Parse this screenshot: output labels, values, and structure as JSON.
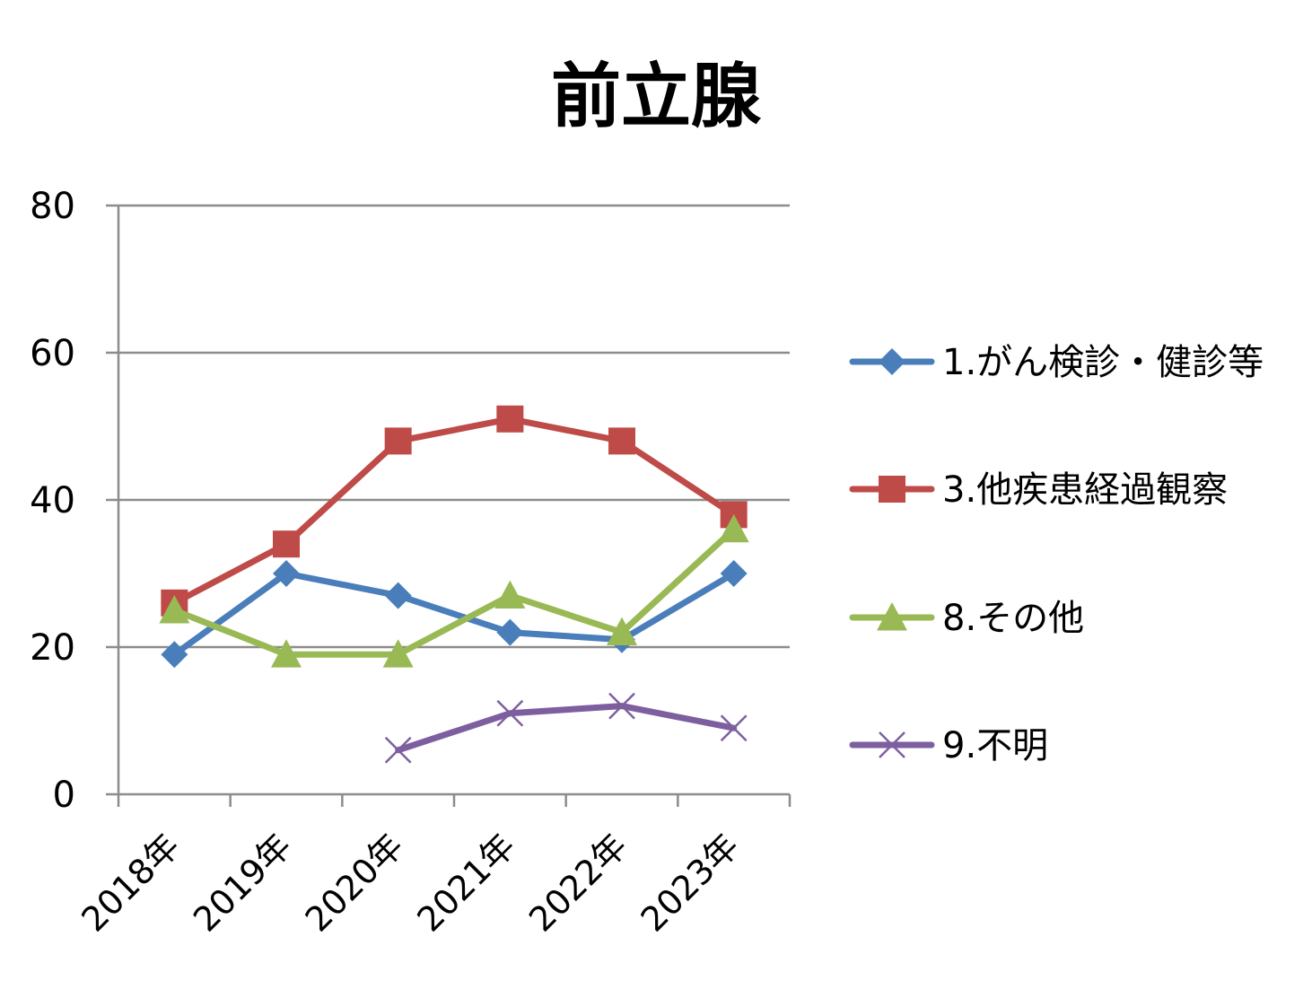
{
  "chart_data": {
    "type": "line",
    "title": "前立腺",
    "xlabel": "",
    "ylabel": "",
    "categories": [
      "2018年",
      "2019年",
      "2020年",
      "2021年",
      "2022年",
      "2023年"
    ],
    "ylim": [
      0,
      80
    ],
    "yticks": [
      "0",
      "20",
      "40",
      "60",
      "80"
    ],
    "grid": true,
    "legend_position": "right",
    "series": [
      {
        "name": "1.がん検診・健診等",
        "values": [
          19,
          30,
          27,
          22,
          21,
          30
        ],
        "color": "#4a7ebb",
        "marker": "diamond"
      },
      {
        "name": "3.他疾患経過観察",
        "values": [
          26,
          34,
          48,
          51,
          48,
          38
        ],
        "color": "#be4b48",
        "marker": "square"
      },
      {
        "name": "8.その他",
        "values": [
          25,
          19,
          19,
          27,
          22,
          36
        ],
        "color": "#98b954",
        "marker": "triangle"
      },
      {
        "name": "9.不明",
        "values": [
          null,
          null,
          6,
          11,
          12,
          9
        ],
        "color": "#7d5fa0",
        "marker": "x"
      }
    ]
  }
}
